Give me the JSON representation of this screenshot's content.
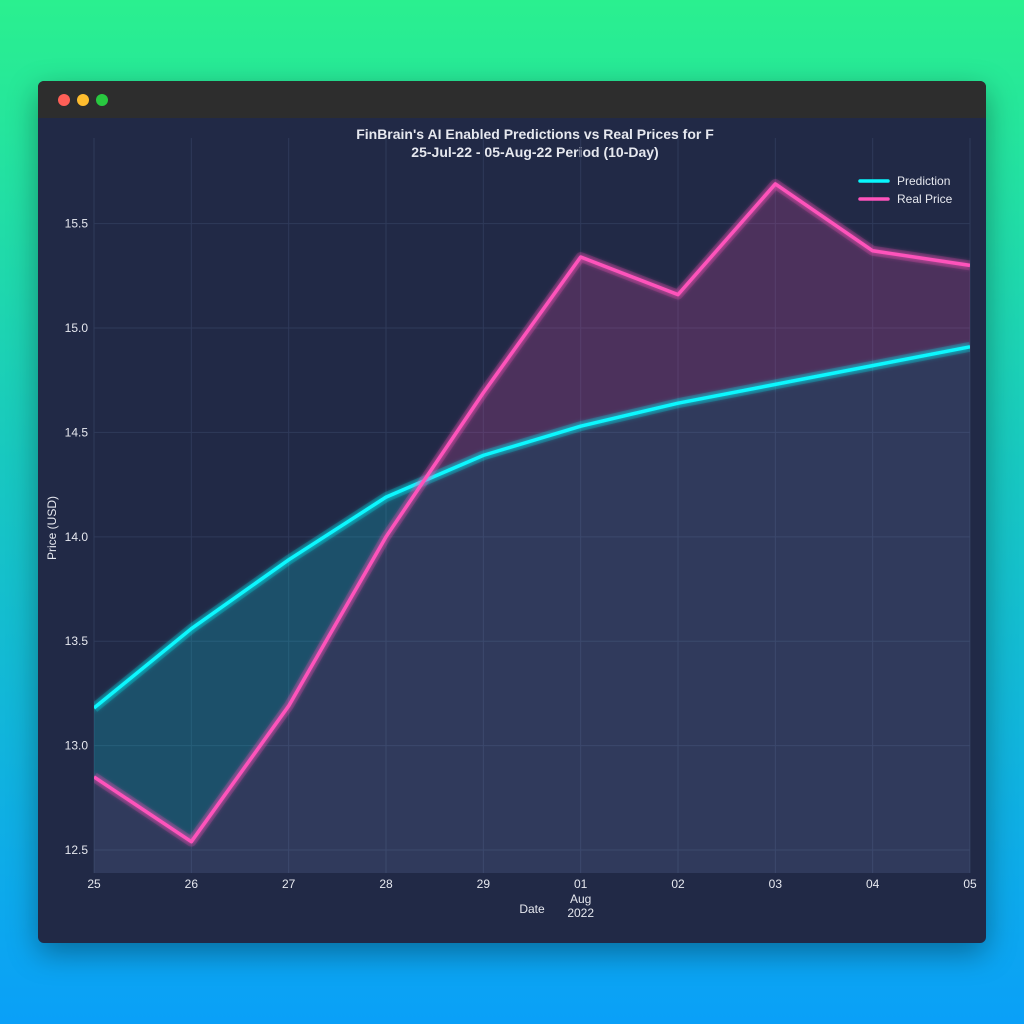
{
  "window": {
    "controls": [
      "close",
      "minimize",
      "zoom"
    ]
  },
  "colors": {
    "background_top": "#2af08f",
    "background_bottom": "#0aa0f8",
    "plot_bg": "#212946",
    "titlebar": "#2d2d2d",
    "prediction": "#08f7fe",
    "real_price": "#fe53bb",
    "grid": "#2f3a5a"
  },
  "chart_data": {
    "type": "line",
    "title_line1": "FinBrain's AI Enabled Predictions vs Real Prices for F",
    "title_line2": "25-Jul-22 - 05-Aug-22 Period (10-Day)",
    "xlabel": "Date",
    "ylabel": "Price (USD)",
    "x": [
      "2022-07-25",
      "2022-07-26",
      "2022-07-27",
      "2022-07-28",
      "2022-07-29",
      "2022-08-01",
      "2022-08-02",
      "2022-08-03",
      "2022-08-04",
      "2022-08-05"
    ],
    "x_tick_labels": [
      "25",
      "26",
      "27",
      "28",
      "29",
      "01",
      "02",
      "03",
      "04",
      "05"
    ],
    "x_secondary_label": [
      "Aug",
      "2022"
    ],
    "series": [
      {
        "name": "Prediction",
        "color": "#08f7fe",
        "values": [
          13.18,
          13.56,
          13.89,
          14.19,
          14.39,
          14.53,
          14.64,
          14.73,
          14.82,
          14.91
        ]
      },
      {
        "name": "Real Price",
        "color": "#fe53bb",
        "values": [
          12.85,
          12.54,
          13.19,
          14.0,
          14.69,
          15.34,
          15.16,
          15.69,
          15.37,
          15.3
        ]
      }
    ],
    "y_ticks": [
      "12.5",
      "13.0",
      "13.5",
      "14.0",
      "14.5",
      "15.0",
      "15.5"
    ],
    "ylim": [
      12.39,
      15.91
    ],
    "grid": true,
    "legend_position": "top-right",
    "area_fill": "between series and to baseline"
  }
}
